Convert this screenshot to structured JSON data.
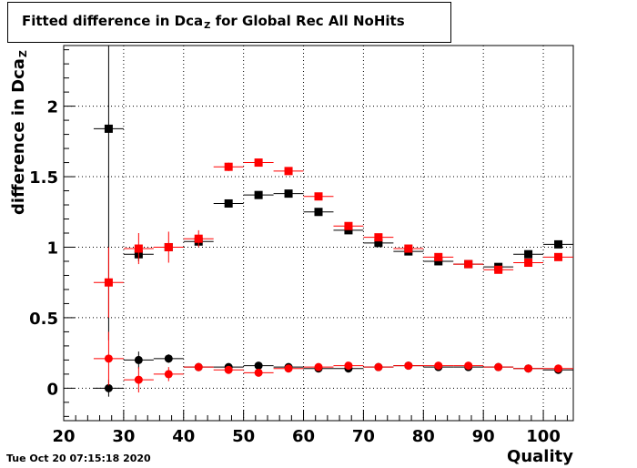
{
  "title": {
    "main": "Fitted difference in Dca",
    "subscript": "Z",
    "suffix": " for Global Rec All NoHits"
  },
  "timestamp": "Tue Oct 20 07:15:18 2020",
  "colors": {
    "series_black": "#000000",
    "series_red": "#ff0000",
    "grid": "#000000",
    "background": "#ffffff"
  },
  "chart_data": {
    "type": "scatter",
    "title": "Fitted difference in Dca_Z for Global Rec All NoHits",
    "xlabel": "Quality",
    "ylabel": {
      "main": "difference in Dca",
      "subscript": "Z"
    },
    "xlim": [
      20,
      105
    ],
    "ylim": [
      -0.23,
      2.43
    ],
    "grid": true,
    "x_ticks": [
      20,
      30,
      40,
      50,
      60,
      70,
      80,
      90,
      100
    ],
    "x_tick_labels": [
      "20",
      "30",
      "40",
      "50",
      "60",
      "70",
      "80",
      "90",
      "100"
    ],
    "y_ticks": [
      0,
      0.5,
      1,
      1.5,
      2
    ],
    "y_tick_labels": [
      "0",
      "0.5",
      "1",
      "1.5",
      "2"
    ],
    "x_bin_halfwidth": 2.5,
    "series": [
      {
        "marker": "square",
        "color": "#000000",
        "x": [
          27.5,
          32.5,
          37.5,
          42.5,
          47.5,
          52.5,
          57.5,
          62.5,
          67.5,
          72.5,
          77.5,
          82.5,
          87.5,
          92.5,
          97.5,
          102.5
        ],
        "y": [
          1.84,
          0.95,
          1.0,
          1.04,
          1.31,
          1.37,
          1.38,
          1.25,
          1.12,
          1.03,
          0.97,
          0.9,
          0.88,
          0.86,
          0.95,
          1.02
        ],
        "yerr": [
          1.5,
          0.05,
          0.03,
          0.02,
          0.02,
          0.02,
          0.02,
          0.02,
          0.02,
          0.02,
          0.02,
          0.02,
          0.02,
          0.02,
          0.02,
          0.02
        ]
      },
      {
        "marker": "square",
        "color": "#ff0000",
        "x": [
          27.5,
          32.5,
          37.5,
          42.5,
          47.5,
          52.5,
          57.5,
          62.5,
          67.5,
          72.5,
          77.5,
          82.5,
          87.5,
          92.5,
          97.5,
          102.5
        ],
        "y": [
          0.75,
          0.99,
          1.0,
          1.06,
          1.57,
          1.6,
          1.54,
          1.36,
          1.15,
          1.07,
          0.99,
          0.93,
          0.88,
          0.84,
          0.89,
          0.93
        ],
        "yerr": [
          0.25,
          0.11,
          0.11,
          0.06,
          0.03,
          0.02,
          0.02,
          0.02,
          0.02,
          0.02,
          0.02,
          0.02,
          0.02,
          0.02,
          0.02,
          0.02
        ]
      },
      {
        "marker": "circle",
        "color": "#000000",
        "x": [
          27.5,
          32.5,
          37.5,
          42.5,
          47.5,
          52.5,
          57.5,
          62.5,
          67.5,
          72.5,
          77.5,
          82.5,
          87.5,
          92.5,
          97.5,
          102.5
        ],
        "y": [
          0.0,
          0.2,
          0.21,
          0.15,
          0.15,
          0.16,
          0.15,
          0.14,
          0.14,
          0.15,
          0.16,
          0.15,
          0.15,
          0.15,
          0.14,
          0.13
        ],
        "yerr": [
          0.06,
          0.06,
          0.03,
          0.02,
          0.02,
          0.02,
          0.02,
          0.02,
          0.02,
          0.02,
          0.02,
          0.02,
          0.02,
          0.02,
          0.02,
          0.02
        ]
      },
      {
        "marker": "circle",
        "color": "#ff0000",
        "x": [
          27.5,
          32.5,
          37.5,
          42.5,
          47.5,
          52.5,
          57.5,
          62.5,
          67.5,
          72.5,
          77.5,
          82.5,
          87.5,
          92.5,
          97.5,
          102.5
        ],
        "y": [
          0.21,
          0.06,
          0.1,
          0.15,
          0.13,
          0.11,
          0.14,
          0.15,
          0.16,
          0.15,
          0.16,
          0.16,
          0.16,
          0.15,
          0.14,
          0.14
        ],
        "yerr": [
          0.19,
          0.09,
          0.05,
          0.03,
          0.02,
          0.02,
          0.02,
          0.02,
          0.02,
          0.02,
          0.02,
          0.02,
          0.02,
          0.02,
          0.02,
          0.02
        ]
      }
    ]
  }
}
